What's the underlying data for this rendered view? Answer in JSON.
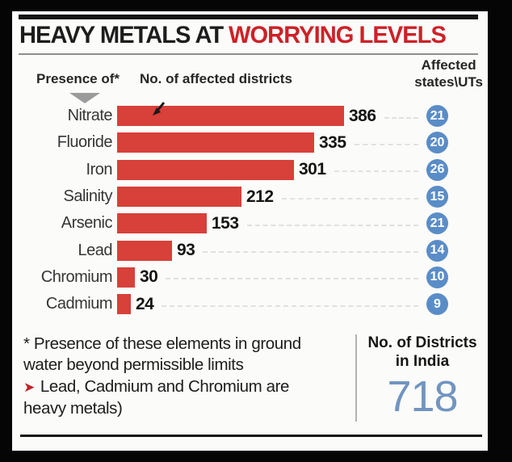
{
  "chart_data": {
    "type": "bar",
    "orientation": "horizontal",
    "title": "HEAVY METALS AT WORRYING LEVELS",
    "xlabel": "No. of affected districts",
    "categories": [
      "Nitrate",
      "Fluoride",
      "Iron",
      "Salinity",
      "Arsenic",
      "Lead",
      "Chromium",
      "Cadmium"
    ],
    "series": [
      {
        "name": "No. of affected districts",
        "values": [
          386,
          335,
          301,
          212,
          153,
          93,
          30,
          24
        ]
      },
      {
        "name": "Affected states\\UTs",
        "values": [
          21,
          20,
          26,
          15,
          21,
          14,
          10,
          9
        ]
      }
    ],
    "xlim": [
      0,
      400
    ],
    "grid": false,
    "legend_position": "none",
    "annotations": [
      "* Presence of these elements in ground water beyond permissible limits",
      "Lead, Cadmium and Chromium are heavy metals)",
      "No. of Districts in India 718"
    ]
  },
  "title": {
    "part_black": "HEAVY METALS AT",
    "part_red": "WORRYING LEVELS"
  },
  "headers": {
    "presence": "Presence of*",
    "districts": "No. of affected districts",
    "affected_line1": "Affected",
    "affected_line2": "states\\UTs"
  },
  "footnotes": {
    "bullet": "➤",
    "note1_line1": "* Presence of these elements in ground",
    "note1_line2": "water beyond permissible limits",
    "note2_line1": "Lead, Cadmium and Chromium are",
    "note2_line2": "heavy metals)"
  },
  "summary": {
    "label_line1": "No. of Districts",
    "label_line2": "in India",
    "value": "718"
  },
  "colors": {
    "bar_red": "#d8403a",
    "title_red": "#cd2127",
    "circle_blue": "#5a8dc7",
    "big_number_blue": "#7195c1",
    "note_arrow_red": "#c42127"
  }
}
